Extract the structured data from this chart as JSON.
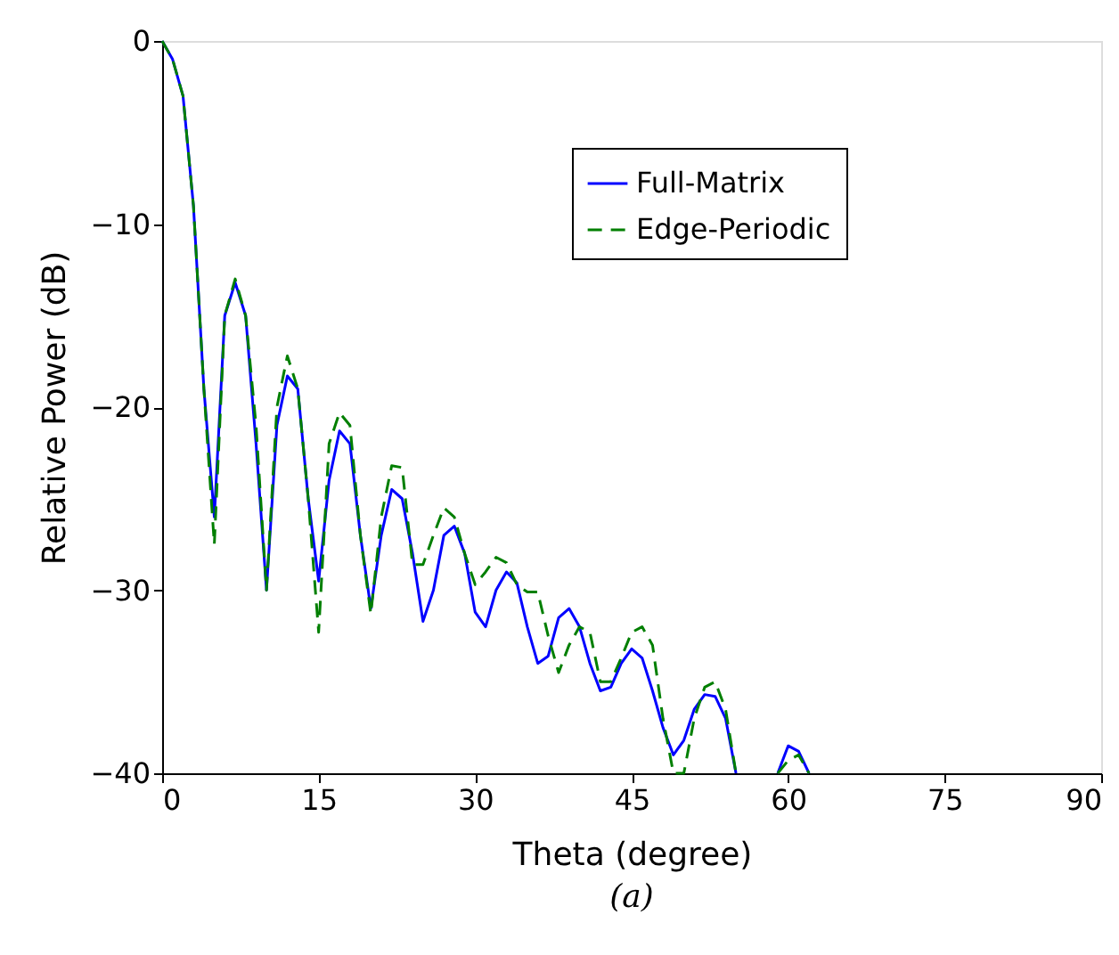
{
  "chart_data": {
    "type": "line",
    "xlabel": "Theta  (degree)",
    "ylabel": "Relative Power  (dB)",
    "annotations": [
      "(a)"
    ],
    "x": [
      0,
      1,
      2,
      3,
      4,
      5,
      6,
      7,
      8,
      9,
      10,
      11,
      12,
      13,
      14,
      15,
      16,
      17,
      18,
      19,
      20,
      21,
      22,
      23,
      24,
      25,
      26,
      27,
      28,
      29,
      30,
      31,
      32,
      33,
      34,
      35,
      36,
      37,
      38,
      39,
      40,
      41,
      42,
      43,
      44,
      45,
      46,
      47,
      48,
      49,
      50,
      51,
      52,
      53,
      54,
      55,
      56,
      57,
      58,
      59,
      60,
      61,
      62
    ],
    "series": [
      {
        "name": "Full-Matrix",
        "color": "#0000ff",
        "line_style": "solid",
        "values": [
          0,
          -1,
          -3,
          -9,
          -19,
          -26,
          -15,
          -13.2,
          -15,
          -22,
          -30,
          -21,
          -18.3,
          -19,
          -25,
          -29.5,
          -24,
          -21.3,
          -22,
          -27,
          -31,
          -27,
          -24.5,
          -25,
          -28,
          -31.7,
          -30,
          -27,
          -26.5,
          -28,
          -31.2,
          -32,
          -30,
          -29,
          -29.6,
          -32,
          -34,
          -33.6,
          -31.5,
          -31,
          -32,
          -34,
          -35.5,
          -35.3,
          -34,
          -33.2,
          -33.7,
          -35.5,
          -37.5,
          -39,
          -38.2,
          -36.5,
          -35.7,
          -35.8,
          -37,
          -40,
          null,
          null,
          null,
          -40,
          -38.5,
          -38.8,
          -40
        ]
      },
      {
        "name": "Edge-Periodic",
        "color": "#007f00",
        "line_style": "dashed",
        "values": [
          0,
          -1,
          -3,
          -9,
          -19,
          -27.5,
          -15,
          -13,
          -15,
          -21,
          -30,
          -20,
          -17.2,
          -19,
          -25,
          -32.3,
          -22,
          -20.3,
          -21,
          -27,
          -31.3,
          -26,
          -23.2,
          -23.3,
          -28.6,
          -28.6,
          -27,
          -25.5,
          -26,
          -28,
          -29.7,
          -29,
          -28.2,
          -28.5,
          -29.7,
          -30.1,
          -30.1,
          -32.5,
          -34.5,
          -33,
          -32,
          -32.3,
          -35,
          -35,
          -33.7,
          -32.3,
          -32,
          -33,
          -37,
          -40,
          -40,
          -37,
          -35.3,
          -35,
          -36.5,
          -40,
          null,
          null,
          null,
          -40,
          -39.3,
          -39,
          -40
        ]
      }
    ],
    "xlim": [
      0,
      90
    ],
    "xticks": [
      0,
      15,
      30,
      45,
      60,
      75,
      90
    ],
    "ylim": [
      -40,
      0
    ],
    "yticks": [
      -40,
      -30,
      -20,
      -10,
      0
    ],
    "grid": false,
    "legend": "top right"
  }
}
